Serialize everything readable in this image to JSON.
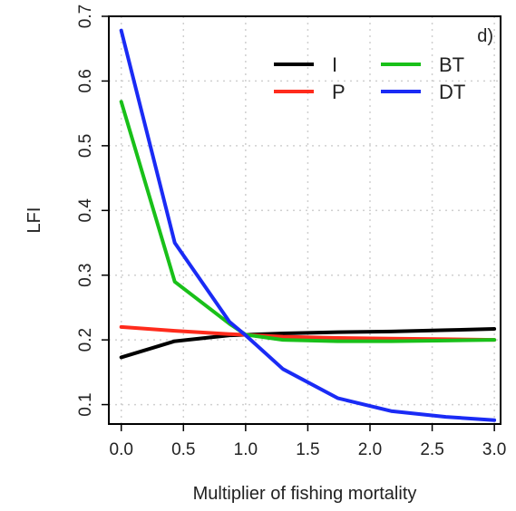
{
  "chart_data": {
    "type": "line",
    "panel_label": "d)",
    "xlabel": "Multiplier of fishing mortality",
    "ylabel": "LFI",
    "xlim": [
      -0.1,
      3.05
    ],
    "ylim": [
      0.07,
      0.7
    ],
    "xticks": [
      0.0,
      0.5,
      1.0,
      1.5,
      2.0,
      2.5,
      3.0
    ],
    "xtick_labels": [
      "0.0",
      "0.5",
      "1.0",
      "1.5",
      "2.0",
      "2.5",
      "3.0"
    ],
    "yticks": [
      0.1,
      0.2,
      0.3,
      0.4,
      0.5,
      0.6,
      0.7
    ],
    "ytick_labels": [
      "0.1",
      "0.2",
      "0.3",
      "0.4",
      "0.5",
      "0.6",
      "0.7"
    ],
    "grid": true,
    "legend_position": "top-right",
    "series": [
      {
        "name": "I",
        "color": "#000000",
        "x": [
          0.0,
          0.43,
          0.87,
          1.3,
          1.74,
          2.17,
          2.61,
          3.0
        ],
        "y": [
          0.173,
          0.198,
          0.207,
          0.21,
          0.212,
          0.213,
          0.215,
          0.217
        ]
      },
      {
        "name": "P",
        "color": "#ff2b1c",
        "x": [
          0.0,
          0.43,
          0.87,
          1.3,
          1.74,
          2.17,
          2.61,
          3.0
        ],
        "y": [
          0.22,
          0.214,
          0.209,
          0.205,
          0.203,
          0.202,
          0.201,
          0.2
        ]
      },
      {
        "name": "BT",
        "color": "#19c019",
        "x": [
          0.0,
          0.43,
          0.87,
          1.0,
          1.3,
          1.74,
          2.17,
          2.61,
          3.0
        ],
        "y": [
          0.568,
          0.29,
          0.225,
          0.208,
          0.2,
          0.198,
          0.198,
          0.199,
          0.2
        ]
      },
      {
        "name": "DT",
        "color": "#1a2bf5",
        "x": [
          0.0,
          0.43,
          0.87,
          1.0,
          1.3,
          1.74,
          2.17,
          2.61,
          3.0
        ],
        "y": [
          0.678,
          0.35,
          0.228,
          0.207,
          0.155,
          0.11,
          0.09,
          0.081,
          0.076
        ]
      }
    ]
  }
}
